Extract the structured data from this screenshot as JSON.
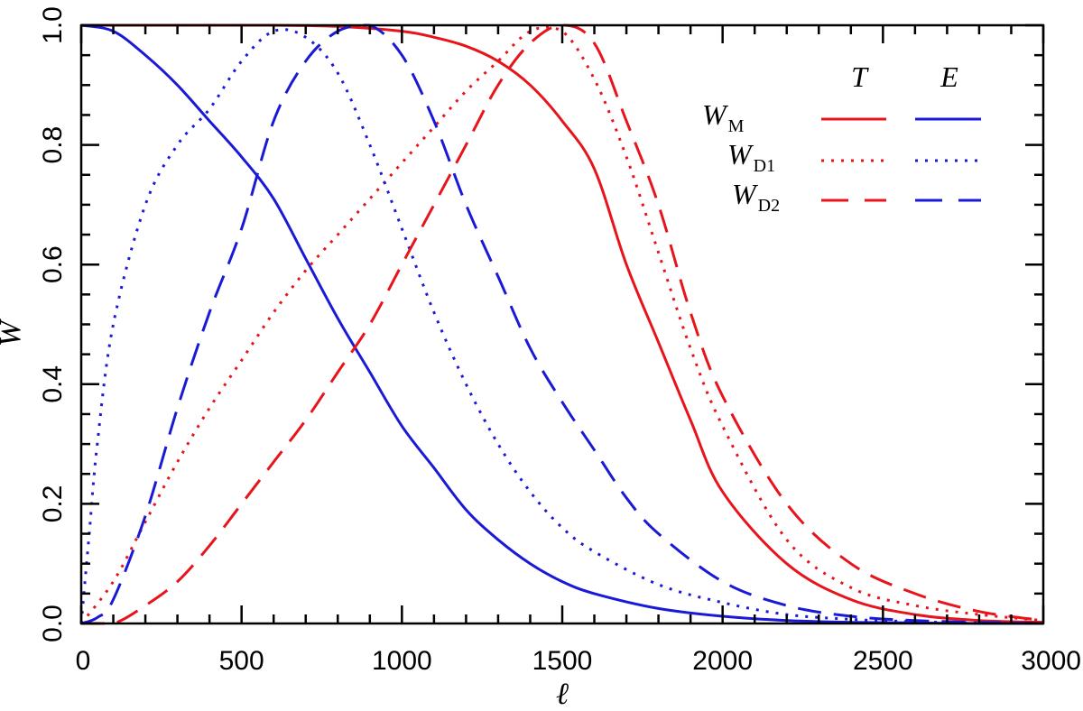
{
  "chart_data": {
    "type": "line",
    "title": "",
    "xlabel": "ℓ",
    "ylabel": "W",
    "xlim": [
      0,
      3000
    ],
    "ylim": [
      0.0,
      1.0
    ],
    "x_ticks": [
      0,
      500,
      1000,
      1500,
      2000,
      2500,
      3000
    ],
    "x_tick_labels": [
      "0",
      "500",
      "1000",
      "1500",
      "2000",
      "2500",
      "3000"
    ],
    "y_ticks": [
      0.0,
      0.2,
      0.4,
      0.6,
      0.8,
      1.0
    ],
    "y_tick_labels": [
      "0.0",
      "0.2",
      "0.4",
      "0.6",
      "0.8",
      "1.0"
    ],
    "grid": false,
    "legend": {
      "placement": "top-right",
      "column_headers": [
        "T",
        "E"
      ],
      "rows": [
        {
          "symbol": "W",
          "subscript": "M",
          "style": "solid"
        },
        {
          "symbol": "W",
          "subscript": "D1",
          "style": "dotted"
        },
        {
          "symbol": "W",
          "subscript": "D2",
          "style": "dashed"
        }
      ]
    },
    "colors": {
      "T": "#e8141b",
      "E": "#1a1ad6"
    },
    "series": [
      {
        "name": "W_M T",
        "component": "T",
        "filter": "M",
        "style": "solid",
        "x": [
          0,
          200,
          400,
          600,
          800,
          1000,
          1100,
          1200,
          1300,
          1400,
          1500,
          1600,
          1700,
          1800,
          1900,
          2000,
          2200,
          2400,
          2600,
          2800,
          3000
        ],
        "y": [
          1.0,
          1.0,
          1.0,
          1.0,
          0.998,
          0.99,
          0.98,
          0.965,
          0.94,
          0.9,
          0.84,
          0.76,
          0.6,
          0.47,
          0.34,
          0.22,
          0.1,
          0.04,
          0.015,
          0.005,
          0.002
        ]
      },
      {
        "name": "W_M E",
        "component": "E",
        "filter": "M",
        "style": "solid",
        "x": [
          0,
          100,
          200,
          300,
          400,
          500,
          600,
          700,
          800,
          900,
          1000,
          1100,
          1200,
          1300,
          1400,
          1500,
          1600,
          1800,
          2000,
          2200,
          2400,
          2600,
          2800,
          3000
        ],
        "y": [
          1.0,
          0.99,
          0.95,
          0.9,
          0.84,
          0.78,
          0.71,
          0.61,
          0.51,
          0.42,
          0.33,
          0.26,
          0.19,
          0.14,
          0.1,
          0.07,
          0.05,
          0.025,
          0.012,
          0.005,
          0.002,
          0.001,
          0.0,
          0.0
        ]
      },
      {
        "name": "W_D1 T",
        "component": "T",
        "filter": "D1",
        "style": "dotted",
        "x": [
          0,
          100,
          200,
          300,
          400,
          500,
          600,
          700,
          800,
          900,
          1000,
          1100,
          1200,
          1300,
          1400,
          1500,
          1600,
          1700,
          1800,
          1900,
          2000,
          2200,
          2400,
          2600,
          2800,
          3000
        ],
        "y": [
          0.0,
          0.07,
          0.17,
          0.27,
          0.36,
          0.44,
          0.52,
          0.59,
          0.65,
          0.71,
          0.77,
          0.83,
          0.89,
          0.94,
          0.99,
          0.99,
          0.91,
          0.78,
          0.62,
          0.46,
          0.33,
          0.14,
          0.06,
          0.03,
          0.015,
          0.005
        ]
      },
      {
        "name": "W_D1 E",
        "component": "E",
        "filter": "D1",
        "style": "dotted",
        "x": [
          0,
          25,
          50,
          100,
          200,
          300,
          400,
          500,
          600,
          700,
          800,
          900,
          1000,
          1100,
          1200,
          1300,
          1400,
          1500,
          1600,
          1800,
          2000,
          2200,
          2400,
          2600,
          2800,
          3000
        ],
        "y": [
          0.0,
          0.15,
          0.3,
          0.5,
          0.7,
          0.8,
          0.86,
          0.94,
          0.99,
          0.98,
          0.92,
          0.8,
          0.66,
          0.52,
          0.4,
          0.3,
          0.22,
          0.16,
          0.12,
          0.065,
          0.035,
          0.015,
          0.007,
          0.003,
          0.001,
          0.0
        ]
      },
      {
        "name": "W_D2 T",
        "component": "T",
        "filter": "D2",
        "style": "dashed",
        "x": [
          0,
          100,
          200,
          300,
          400,
          500,
          600,
          700,
          800,
          900,
          1000,
          1100,
          1200,
          1300,
          1400,
          1500,
          1600,
          1700,
          1800,
          1900,
          2000,
          2200,
          2400,
          2600,
          2800,
          3000
        ],
        "y": [
          0.0,
          0.0,
          0.03,
          0.07,
          0.13,
          0.2,
          0.27,
          0.34,
          0.42,
          0.5,
          0.6,
          0.7,
          0.8,
          0.9,
          0.97,
          1.0,
          0.97,
          0.84,
          0.7,
          0.52,
          0.38,
          0.2,
          0.1,
          0.05,
          0.02,
          0.005
        ]
      },
      {
        "name": "W_D2 E",
        "component": "E",
        "filter": "D2",
        "style": "dashed",
        "x": [
          0,
          50,
          100,
          200,
          300,
          400,
          500,
          600,
          700,
          800,
          900,
          1000,
          1100,
          1200,
          1300,
          1400,
          1500,
          1600,
          1700,
          1800,
          2000,
          2200,
          2400,
          2600,
          2800,
          3000
        ],
        "y": [
          0.0,
          0.01,
          0.04,
          0.18,
          0.36,
          0.52,
          0.66,
          0.84,
          0.94,
          0.99,
          1.0,
          0.95,
          0.84,
          0.7,
          0.58,
          0.46,
          0.37,
          0.29,
          0.21,
          0.15,
          0.07,
          0.03,
          0.012,
          0.005,
          0.002,
          0.0
        ]
      }
    ]
  }
}
